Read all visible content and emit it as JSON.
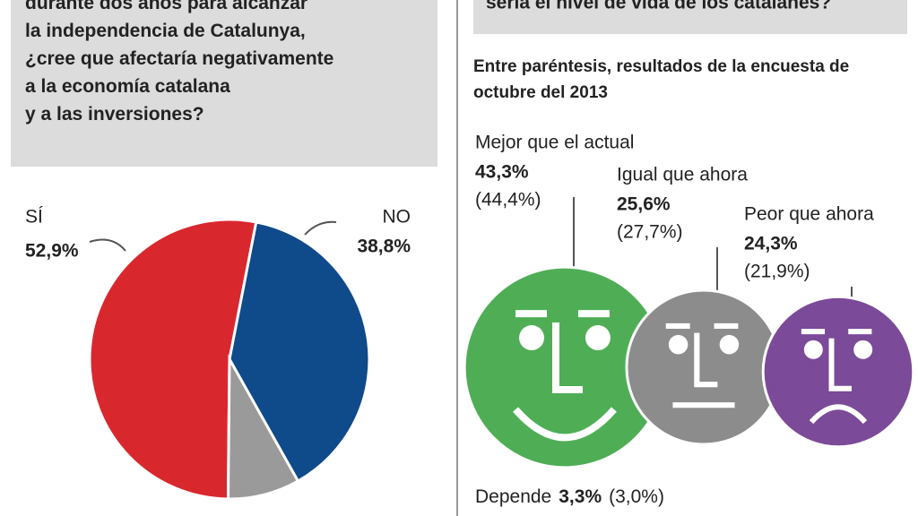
{
  "header": {
    "question_lines": [
      "durante dos años para alcanzar",
      "la independencia de Catalunya,",
      "¿cree que afectaría negativamente",
      "a la economía catalana",
      "y a las inversiones?"
    ],
    "right_question": "sería el nivel de vida de los catalanes?"
  },
  "chart_data": [
    {
      "type": "pie",
      "categories": [
        "SÍ",
        "NO",
        null
      ],
      "values": [
        52.9,
        38.8,
        8.3
      ],
      "value_labels": [
        "52,9%",
        "38,8%",
        null
      ],
      "colors": [
        "#d9272e",
        "#0f4a8a",
        "#9a9a9a"
      ]
    },
    {
      "type": "faces",
      "subtitle": "Entre paréntesis, resultados de la encuesta de octubre del 2013",
      "categories": [
        "Mejor que el actual",
        "Igual que ahora",
        "Peor que ahora",
        "Depende"
      ],
      "values": [
        43.3,
        25.6,
        24.3,
        3.3
      ],
      "value_labels": [
        "43,3%",
        "25,6%",
        "24,3%",
        "3,3%"
      ],
      "previous_values": [
        44.4,
        27.7,
        21.9,
        3.0
      ],
      "previous_labels": [
        "(44,4%)",
        "(27,7%)",
        "(21,9%)",
        "(3,0%)"
      ],
      "colors": [
        "#4fae55",
        "#8c8c8c",
        "#7b4a98",
        null
      ]
    }
  ]
}
